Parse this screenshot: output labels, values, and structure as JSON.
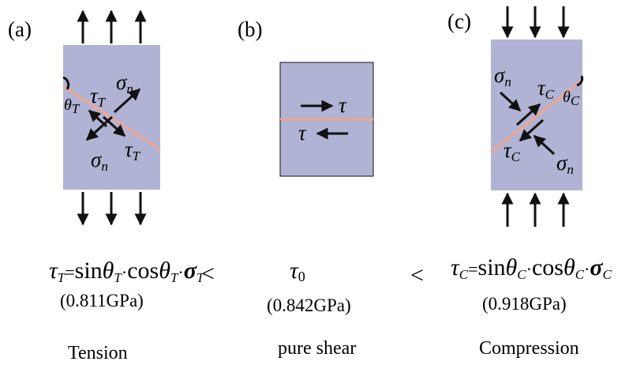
{
  "colors": {
    "block": "#b0b3d3",
    "plane": "#f0a58e",
    "arrow": "#111111"
  },
  "panels": [
    {
      "label": "(a)",
      "theta": "θ",
      "theta_sub": "T",
      "tau": "τ",
      "tau_sub": "T",
      "sigma": "σ",
      "sigma_sub": "n",
      "formula": {
        "lhs": "τ",
        "lhs_sub": "T",
        "eq": "=",
        "sin": "sin",
        "theta1": "θ",
        "theta1_sub": "T",
        "dot1": "·",
        "cos": "cos",
        "theta2": "θ",
        "theta2_sub": "T",
        "dot2": "·",
        "sigma": "σ",
        "sigma_sub": "T"
      },
      "value": "(0.811GPa)",
      "condition": "Tension"
    },
    {
      "label": "(b)",
      "tau": "τ",
      "formula": {
        "lhs": "τ",
        "lhs_sub": "0"
      },
      "value": "(0.842GPa)",
      "condition": "pure shear"
    },
    {
      "label": "(c)",
      "theta": "θ",
      "theta_sub": "C",
      "tau": "τ",
      "tau_sub": "C",
      "sigma": "σ",
      "sigma_sub": "n",
      "formula": {
        "lhs": "τ",
        "lhs_sub": "C",
        "eq": "=",
        "sin": "sin",
        "theta1": "θ",
        "theta1_sub": "C",
        "dot1": "·",
        "cos": "cos",
        "theta2": "θ",
        "theta2_sub": "C",
        "dot2": "·",
        "sigma": "σ",
        "sigma_sub": "C"
      },
      "value": "(0.918GPa)",
      "condition": "Compression"
    }
  ],
  "comparators": [
    "<",
    "<"
  ]
}
